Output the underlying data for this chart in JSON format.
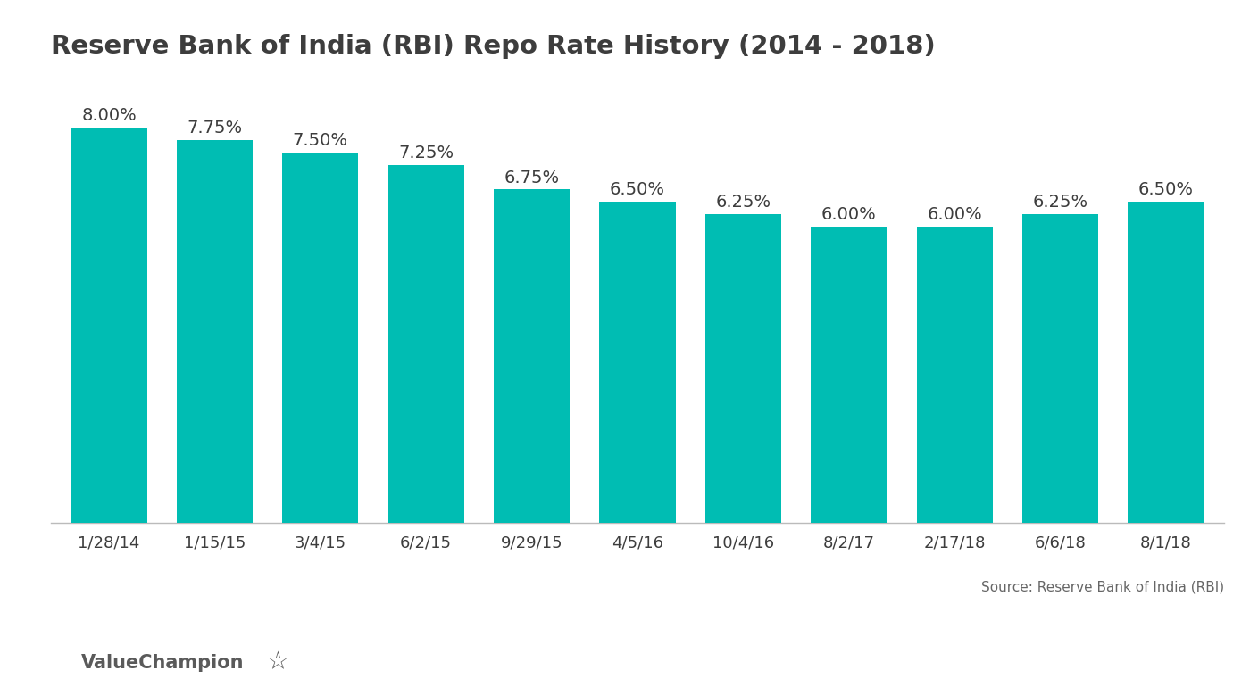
{
  "title": "Reserve Bank of India (RBI) Repo Rate History (2014 - 2018)",
  "categories": [
    "1/28/14",
    "1/15/15",
    "3/4/15",
    "6/2/15",
    "9/29/15",
    "4/5/16",
    "10/4/16",
    "8/2/17",
    "2/17/18",
    "6/6/18",
    "8/1/18"
  ],
  "values": [
    8.0,
    7.75,
    7.5,
    7.25,
    6.75,
    6.5,
    6.25,
    6.0,
    6.0,
    6.25,
    6.5
  ],
  "bar_color": "#00BDB3",
  "bar_labels": [
    "8.00%",
    "7.75%",
    "7.50%",
    "7.25%",
    "6.75%",
    "6.50%",
    "6.25%",
    "6.00%",
    "6.00%",
    "6.25%",
    "6.50%"
  ],
  "ylim": [
    0,
    9.0
  ],
  "title_fontsize": 21,
  "label_fontsize": 14,
  "tick_fontsize": 13,
  "source_text": "Source: Reserve Bank of India (RBI)",
  "watermark_text": "ValueChampion",
  "background_color": "#ffffff",
  "text_color": "#3d3d3d",
  "source_color": "#666666",
  "bar_width": 0.72
}
